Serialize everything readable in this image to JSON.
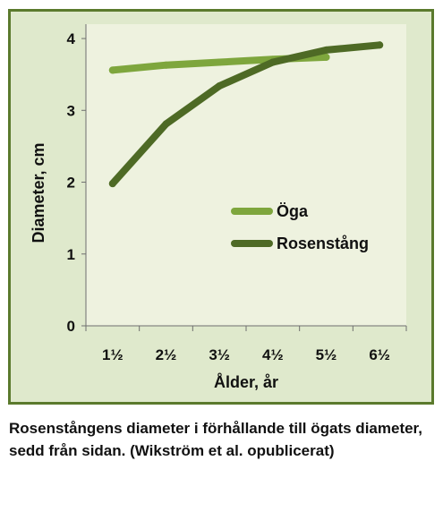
{
  "colors": {
    "frame_fill": "#dfe9cc",
    "frame_border": "#5b7a2d",
    "plot_fill": "#eef2df",
    "axis": "#6f6f6f",
    "text": "#111111"
  },
  "chart_data": {
    "type": "line",
    "title": "",
    "xlabel": "Ålder, år",
    "ylabel": "Diameter, cm",
    "categories": [
      "1½",
      "2½",
      "3½",
      "4½",
      "5½",
      "6½"
    ],
    "yticks": [
      "0",
      "1",
      "2",
      "3",
      "4"
    ],
    "ylim": [
      0,
      4.2
    ],
    "grid": false,
    "legend_position": "center-right",
    "series": [
      {
        "name": "Öga",
        "color": "#7ea63d",
        "values": [
          3.56,
          3.63,
          3.67,
          3.71,
          3.74,
          null
        ]
      },
      {
        "name": "Rosenstång",
        "color": "#4e6a25",
        "values": [
          1.98,
          2.81,
          3.34,
          3.67,
          3.84,
          3.91
        ]
      }
    ]
  },
  "caption": "Rosenstångens diameter i förhållande till ögats diameter, sedd från sidan. (Wikström et al. opublicerat)"
}
